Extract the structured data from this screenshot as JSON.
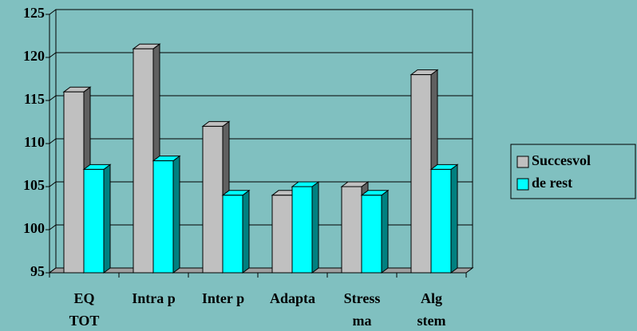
{
  "chart_data": {
    "type": "bar3d",
    "categories": [
      "EQ\nTOT",
      "Intra p",
      "Inter p",
      "Adapta",
      "Stress\nma",
      "Alg\nstem"
    ],
    "series": [
      {
        "name": "Succesvol",
        "color": "#c0c0c0",
        "values": [
          116,
          121,
          112,
          104,
          105,
          118
        ]
      },
      {
        "name": "de rest",
        "color": "#00ffff",
        "values": [
          107,
          108,
          104,
          105,
          104,
          107
        ]
      }
    ],
    "ylim": [
      95,
      125
    ],
    "yticks": [
      95,
      100,
      105,
      110,
      115,
      120,
      125
    ],
    "grid": true,
    "legend": "right"
  }
}
